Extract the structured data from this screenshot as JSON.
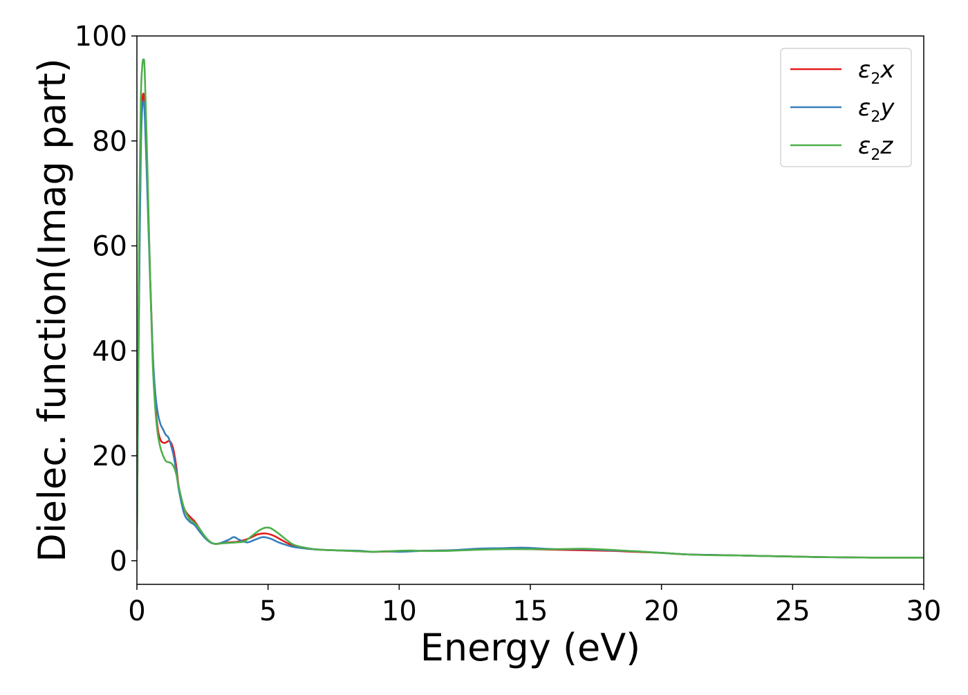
{
  "chart_data": {
    "type": "line",
    "title": "",
    "xlabel": "Energy (eV)",
    "ylabel": "Dielec. function(Imag part)",
    "xlim": [
      0,
      30
    ],
    "ylim": [
      -4.5,
      100
    ],
    "xticks": [
      0,
      5,
      10,
      15,
      20,
      25,
      30
    ],
    "xtick_labels": [
      "0",
      "5",
      "10",
      "15",
      "20",
      "25",
      "30"
    ],
    "yticks": [
      0,
      20,
      40,
      60,
      80,
      100
    ],
    "ytick_labels": [
      "0",
      "20",
      "40",
      "60",
      "80",
      "100"
    ],
    "grid": false,
    "legend_position": "top-right",
    "series": [
      {
        "name": "ε2x",
        "legend_main": "ε",
        "legend_sub": "2",
        "legend_tail": "x",
        "color": "#e41a1c",
        "x": [
          0,
          0.05,
          0.1,
          0.15,
          0.2,
          0.25,
          0.3,
          0.4,
          0.5,
          0.6,
          0.7,
          0.8,
          0.9,
          1.0,
          1.1,
          1.2,
          1.3,
          1.4,
          1.5,
          1.6,
          1.8,
          2.0,
          2.2,
          2.4,
          2.6,
          2.8,
          3.0,
          3.2,
          3.5,
          3.8,
          4.0,
          4.3,
          4.6,
          4.9,
          5.2,
          5.5,
          5.8,
          6.1,
          6.5,
          7.0,
          7.5,
          8.0,
          8.5,
          9.0,
          9.5,
          10.0,
          10.5,
          11.0,
          12.0,
          13.0,
          14.0,
          15.0,
          16.0,
          17.0,
          18.0,
          19.0,
          20.0,
          21.0,
          22.0,
          23.0,
          24.0,
          25.0,
          26.0,
          27.0,
          28.0,
          29.0,
          30.0
        ],
        "y": [
          2,
          35,
          60,
          80,
          87,
          89,
          86,
          72,
          55,
          40,
          30,
          25,
          23,
          22.5,
          22.5,
          22.8,
          22.5,
          21,
          18,
          14,
          10,
          8.5,
          7.5,
          6,
          4.5,
          3.5,
          3.2,
          3.3,
          3.5,
          3.6,
          3.8,
          4.3,
          5,
          5.2,
          4.8,
          4,
          3.2,
          2.6,
          2.3,
          2.1,
          2,
          1.9,
          1.8,
          1.7,
          1.75,
          1.8,
          1.85,
          1.9,
          2.0,
          2.2,
          2.3,
          2.2,
          2.1,
          2.0,
          1.9,
          1.7,
          1.5,
          1.2,
          1.1,
          1.0,
          0.9,
          0.8,
          0.7,
          0.65,
          0.6,
          0.6,
          0.6
        ]
      },
      {
        "name": "ε2y",
        "legend_main": "ε",
        "legend_sub": "2",
        "legend_tail": "y",
        "color": "#377eb8",
        "x": [
          0,
          0.05,
          0.1,
          0.15,
          0.2,
          0.25,
          0.3,
          0.4,
          0.5,
          0.6,
          0.7,
          0.8,
          0.9,
          1.0,
          1.1,
          1.2,
          1.3,
          1.4,
          1.5,
          1.6,
          1.8,
          2.0,
          2.2,
          2.4,
          2.6,
          2.8,
          3.0,
          3.2,
          3.5,
          3.7,
          3.9,
          4.2,
          4.5,
          4.8,
          5.1,
          5.4,
          5.7,
          6.0,
          6.5,
          7.0,
          7.5,
          8.0,
          8.5,
          9.0,
          9.5,
          10.0,
          10.5,
          11.0,
          12.0,
          13.0,
          14.0,
          14.7,
          15.5,
          16.0,
          17.0,
          18.0,
          19.0,
          20.0,
          21.0,
          22.0,
          23.0,
          24.0,
          25.0,
          26.0,
          27.0,
          28.0,
          29.0,
          30.0
        ],
        "y": [
          2,
          34,
          58,
          78,
          86,
          87.5,
          85,
          70,
          54,
          40,
          32,
          28,
          26,
          25,
          24,
          23.5,
          22,
          20,
          17,
          13.5,
          9,
          7.5,
          6.8,
          5.5,
          4.3,
          3.5,
          3.2,
          3.4,
          4,
          4.5,
          4,
          3.5,
          4,
          4.5,
          4.2,
          3.5,
          3,
          2.6,
          2.3,
          2.1,
          2,
          1.95,
          1.9,
          1.7,
          1.8,
          1.7,
          1.8,
          1.9,
          2.0,
          2.3,
          2.4,
          2.5,
          2.3,
          2.2,
          2.2,
          2.0,
          1.8,
          1.5,
          1.2,
          1.1,
          1.0,
          0.9,
          0.8,
          0.7,
          0.65,
          0.6,
          0.6,
          0.6
        ]
      },
      {
        "name": "ε2z",
        "legend_main": "ε",
        "legend_sub": "2",
        "legend_tail": "z",
        "color": "#4daf4a",
        "x": [
          0,
          0.05,
          0.1,
          0.15,
          0.2,
          0.25,
          0.3,
          0.4,
          0.5,
          0.6,
          0.7,
          0.8,
          0.9,
          1.0,
          1.1,
          1.2,
          1.3,
          1.4,
          1.5,
          1.6,
          1.8,
          2.0,
          2.2,
          2.4,
          2.6,
          2.8,
          3.0,
          3.2,
          3.5,
          3.8,
          4.1,
          4.4,
          4.7,
          4.9,
          5.1,
          5.4,
          5.7,
          6.0,
          6.5,
          7.0,
          7.5,
          8.0,
          8.5,
          9.0,
          9.5,
          10.0,
          10.5,
          11.0,
          12.0,
          13.0,
          14.0,
          15.0,
          16.0,
          17.0,
          18.0,
          19.0,
          20.0,
          21.0,
          22.0,
          23.0,
          24.0,
          25.0,
          26.0,
          27.0,
          28.0,
          29.0,
          30.0
        ],
        "y": [
          2,
          40,
          70,
          88,
          94,
          95.5,
          93,
          75,
          55,
          38,
          29,
          24,
          21.5,
          20,
          19,
          18.8,
          18.6,
          18,
          16.5,
          14,
          10,
          8,
          7.2,
          6,
          4.6,
          3.6,
          3.2,
          3.3,
          3.4,
          3.5,
          3.7,
          4.8,
          5.9,
          6.3,
          6.2,
          5.2,
          4,
          3,
          2.4,
          2.1,
          2,
          1.9,
          1.8,
          1.7,
          1.8,
          1.9,
          1.95,
          1.85,
          1.9,
          2.1,
          2.2,
          2.2,
          2.2,
          2.3,
          2.1,
          1.8,
          1.5,
          1.2,
          1.05,
          1.0,
          0.9,
          0.8,
          0.7,
          0.65,
          0.6,
          0.6,
          0.6
        ]
      }
    ]
  }
}
